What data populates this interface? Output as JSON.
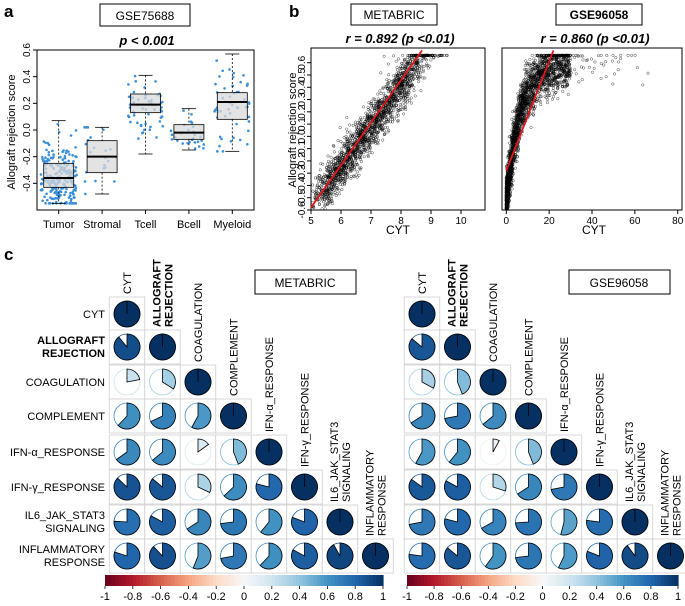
{
  "panels": {
    "a": "a",
    "b": "b",
    "c": "c"
  },
  "panel_a": {
    "dataset": "GSE75688",
    "stat": "p < 0.001",
    "ylabel": "Allograft rejection score"
  },
  "panel_b": {
    "left_dataset": "METABRIC",
    "left_stat": "r = 0.892 (p <0.01)",
    "right_dataset": "GSE96058",
    "right_stat": "r = 0.860 (p <0.01)",
    "ylabel": "Allograft rejection score",
    "xlabel": "CYT"
  },
  "panel_c": {
    "left_dataset": "METABRIC",
    "right_dataset": "GSE96058",
    "row_labels": [
      "CYT",
      "ALLOGRAFT REJECTION",
      "COAGULATION",
      "COMPLEMENT",
      "IFN-α_RESPONSE",
      "IFN-γ_RESPONSE",
      "IL6_JAK_STAT3 SIGNALING",
      "INFLAMMATORY RESPONSE"
    ],
    "col_labels": [
      "CYT",
      "ALLOGRAFT REJECTION",
      "COAGULATION",
      "COMPLEMENT",
      "IFN-α_RESPONSE",
      "IFN-γ_RESPONSE",
      "IL6_JAK_STAT3 SIGNALING",
      "INFLAMMATORY RESPONSE"
    ]
  },
  "colors": {
    "box_fill": "#d9d9d9",
    "points": "#3a8fd8",
    "regression": "#e0161b",
    "pos_strong": "#053061",
    "neg_strong": "#67001f"
  },
  "chart_data": [
    {
      "id": "a",
      "type": "box",
      "title": "GSE75688",
      "annotation": "p < 0.001",
      "xlabel": "",
      "ylabel": "Allograft rejection score",
      "categories": [
        "Tumor",
        "Stromal",
        "Tcell",
        "Bcell",
        "Myeloid"
      ],
      "boxes": [
        {
          "min": -0.55,
          "q1": -0.43,
          "median": -0.36,
          "q3": -0.25,
          "max": 0.07,
          "n": 240
        },
        {
          "min": -0.48,
          "q1": -0.32,
          "median": -0.2,
          "q3": -0.08,
          "max": 0.02,
          "n": 22
        },
        {
          "min": -0.18,
          "q1": 0.13,
          "median": 0.19,
          "q3": 0.27,
          "max": 0.41,
          "n": 55
        },
        {
          "min": -0.15,
          "q1": -0.07,
          "median": -0.02,
          "q3": 0.04,
          "max": 0.16,
          "n": 30
        },
        {
          "min": -0.16,
          "q1": 0.08,
          "median": 0.21,
          "q3": 0.28,
          "max": 0.57,
          "n": 55
        }
      ],
      "ylim": [
        -0.6,
        0.6
      ],
      "yticks": [
        -0.4,
        -0.2,
        0.0,
        0.2,
        0.4,
        0.6
      ]
    },
    {
      "id": "b-metabric",
      "type": "scatter",
      "title": "METABRIC",
      "annotation": "r = 0.892 (p <0.01)",
      "xlabel": "CYT",
      "ylabel": "Allograft rejection score",
      "xlim": [
        5,
        10.8
      ],
      "ylim": [
        -0.6,
        0.72
      ],
      "xticks": [
        5,
        6,
        7,
        8,
        9,
        10
      ],
      "yticks": [
        -0.6,
        -0.5,
        -0.4,
        -0.3,
        -0.2,
        -0.1,
        0.0,
        0.1,
        0.2,
        0.3,
        0.4,
        0.5,
        0.6
      ],
      "fit_line": {
        "x": [
          5,
          8.7
        ],
        "y": [
          -0.58,
          0.7
        ]
      },
      "n_points": 1900
    },
    {
      "id": "b-gse96058",
      "type": "scatter",
      "title": "GSE96058",
      "annotation": "r = 0.860 (p <0.01)",
      "xlabel": "CYT",
      "ylabel": "",
      "xlim": [
        -2,
        82
      ],
      "ylim": [
        -0.6,
        0.72
      ],
      "xticks": [
        0,
        20,
        40,
        60,
        80
      ],
      "fit_line": {
        "x": [
          0,
          22
        ],
        "y": [
          -0.28,
          0.7
        ]
      },
      "n_points": 2500
    },
    {
      "id": "c-metabric",
      "type": "heatmap",
      "title": "METABRIC",
      "labels": [
        "CYT",
        "ALLOGRAFT REJECTION",
        "COAGULATION",
        "COMPLEMENT",
        "IFN-α_RESPONSE",
        "IFN-γ_RESPONSE",
        "IL6_JAK_STAT3 SIGNALING",
        "INFLAMMATORY RESPONSE"
      ],
      "lower_triangle": [
        [
          1
        ],
        [
          0.89,
          1
        ],
        [
          0.22,
          0.34,
          1
        ],
        [
          0.62,
          0.68,
          0.58,
          1
        ],
        [
          0.65,
          0.64,
          0.15,
          0.44,
          1
        ],
        [
          0.87,
          0.86,
          0.32,
          0.63,
          0.79,
          1
        ],
        [
          0.76,
          0.83,
          0.66,
          0.73,
          0.61,
          0.81,
          1
        ],
        [
          0.8,
          0.88,
          0.56,
          0.72,
          0.62,
          0.83,
          0.92,
          1
        ]
      ],
      "colorbar": [
        -1,
        -0.8,
        -0.6,
        -0.4,
        -0.2,
        0,
        0.2,
        0.4,
        0.6,
        0.8,
        1
      ]
    },
    {
      "id": "c-gse96058",
      "type": "heatmap",
      "title": "GSE96058",
      "labels": [
        "CYT",
        "ALLOGRAFT REJECTION",
        "COAGULATION",
        "COMPLEMENT",
        "IFN-α_RESPONSE",
        "IFN-γ_RESPONSE",
        "IL6_JAK_STAT3 SIGNALING",
        "INFLAMMATORY RESPONSE"
      ],
      "lower_triangle": [
        [
          1
        ],
        [
          0.86,
          1
        ],
        [
          0.33,
          0.44,
          1
        ],
        [
          0.66,
          0.72,
          0.64,
          1
        ],
        [
          0.58,
          0.61,
          0.08,
          0.44,
          1
        ],
        [
          0.85,
          0.83,
          0.3,
          0.66,
          0.72,
          1
        ],
        [
          0.72,
          0.79,
          0.67,
          0.74,
          0.54,
          0.77,
          1
        ],
        [
          0.77,
          0.86,
          0.6,
          0.73,
          0.57,
          0.81,
          0.9,
          1
        ]
      ],
      "colorbar": [
        -1,
        -0.8,
        -0.6,
        -0.4,
        -0.2,
        0,
        0.2,
        0.4,
        0.6,
        0.8,
        1
      ]
    }
  ]
}
